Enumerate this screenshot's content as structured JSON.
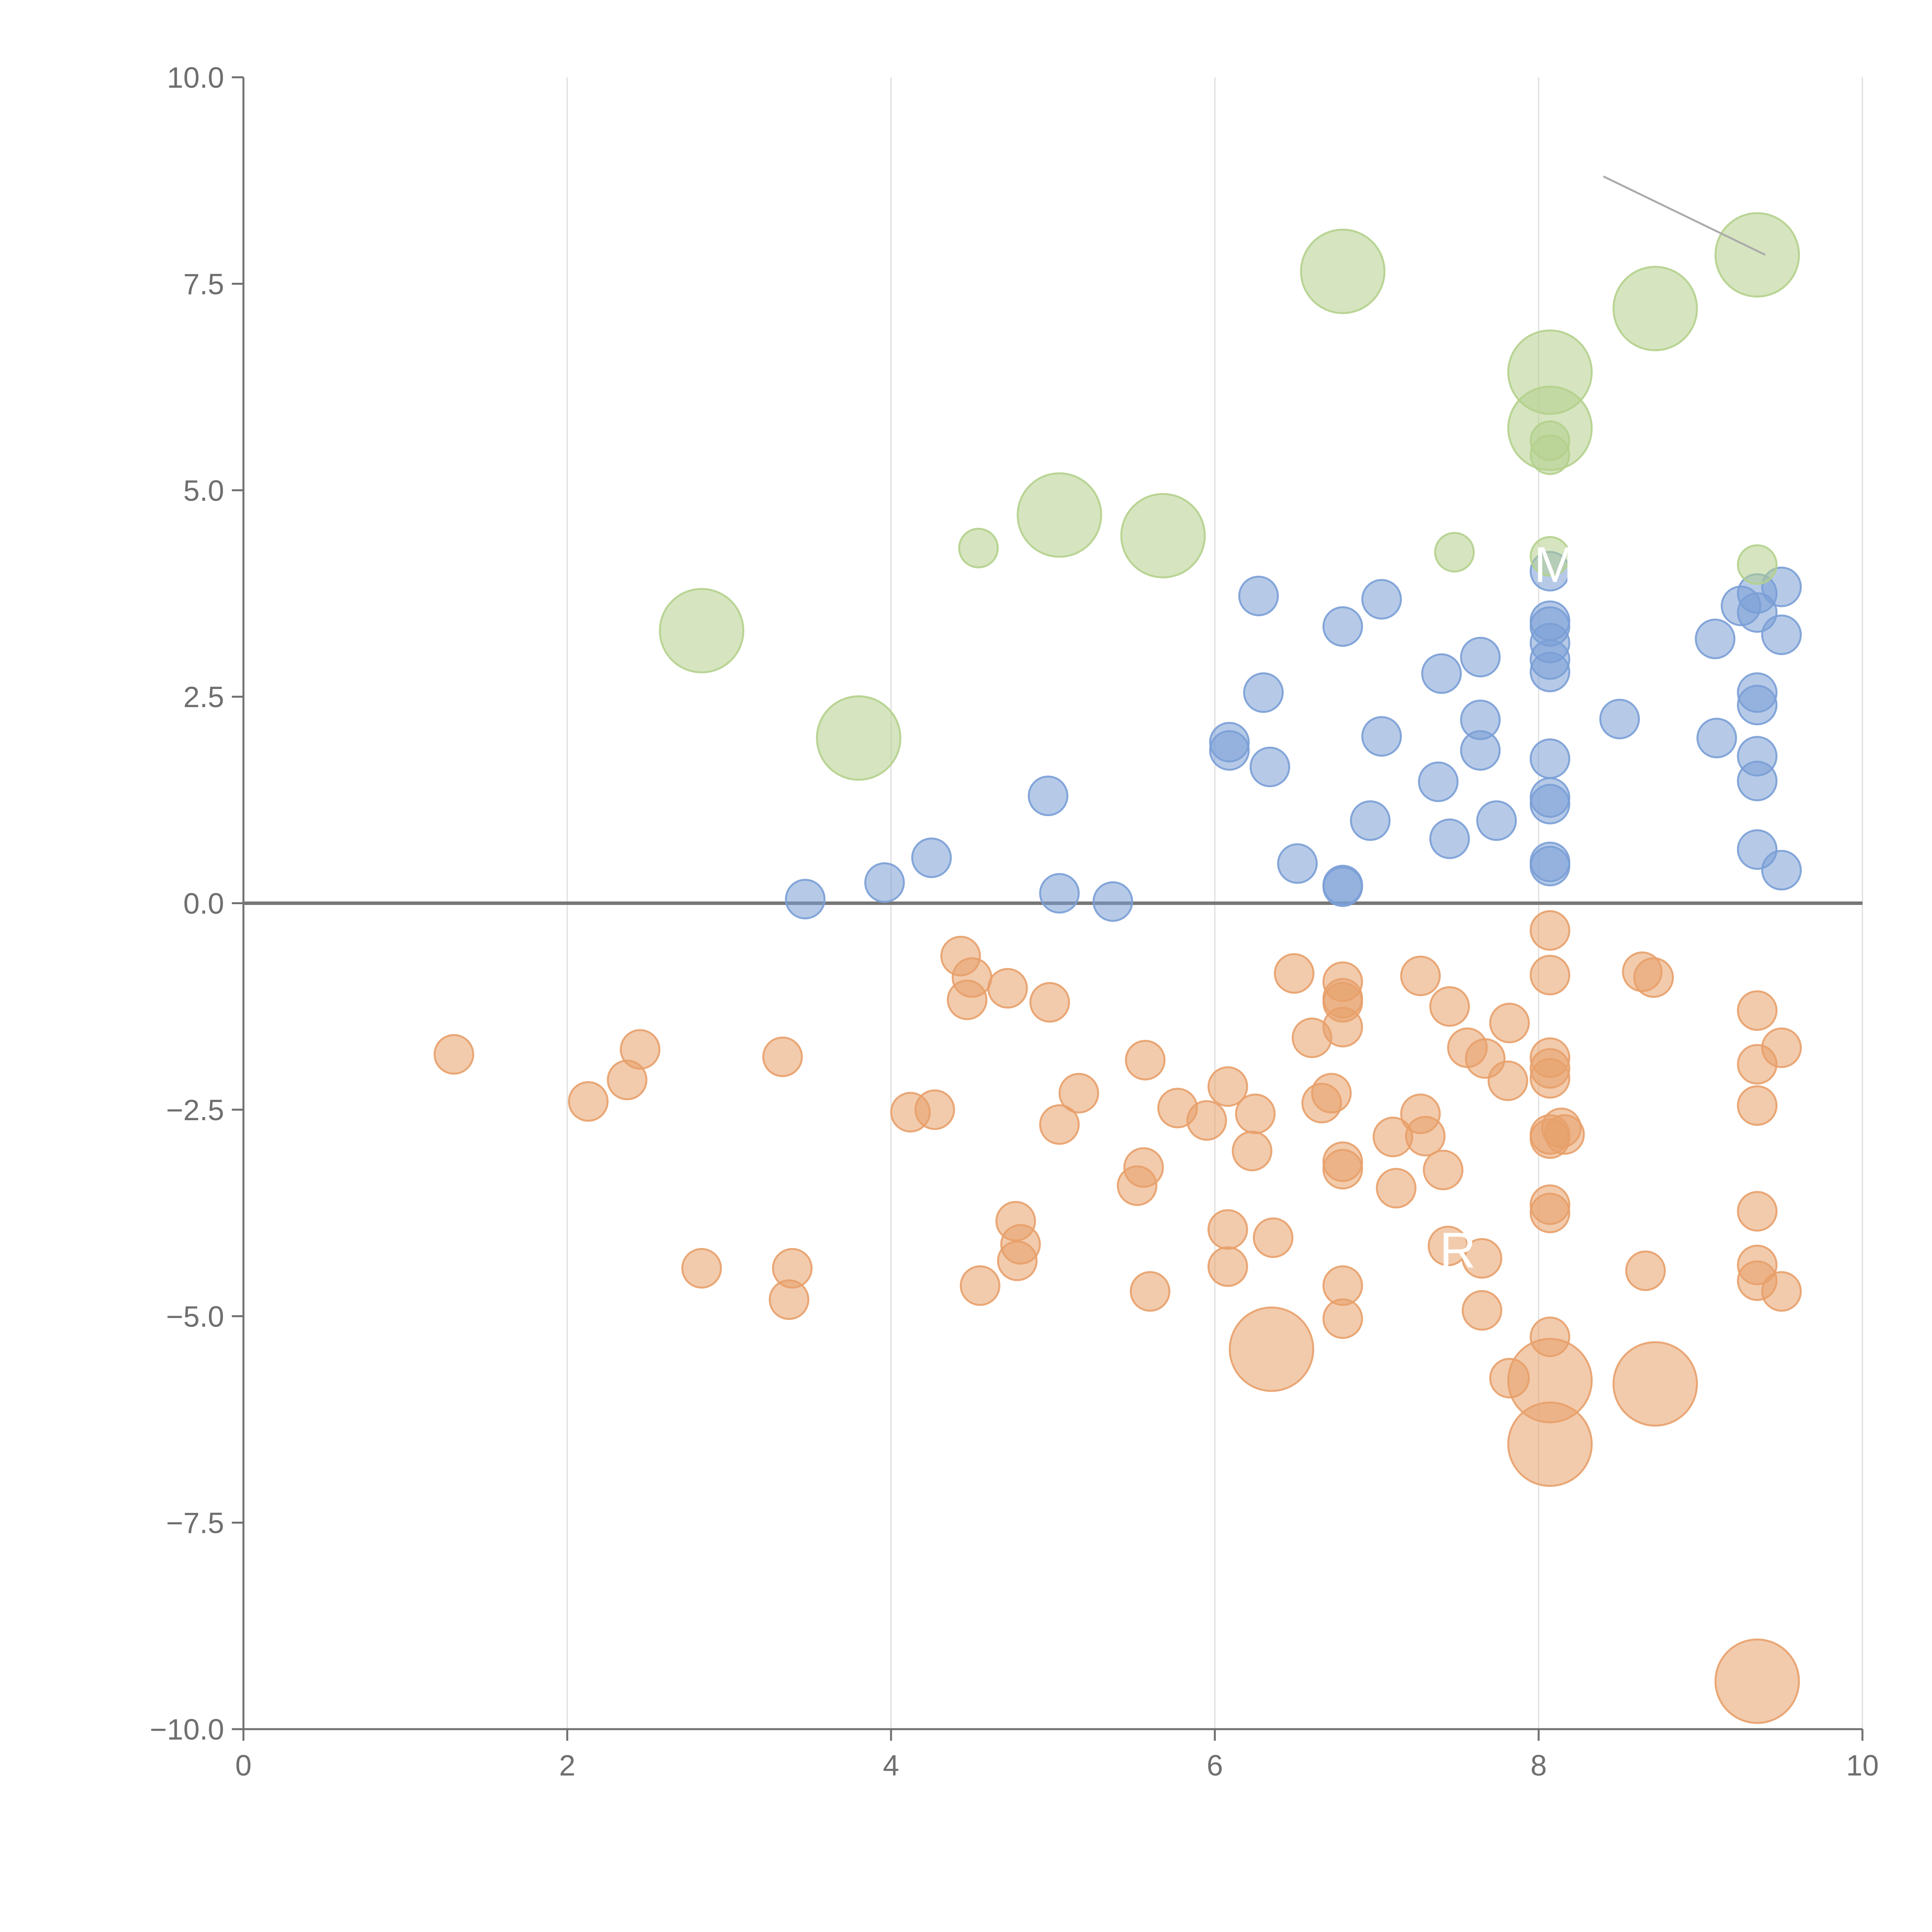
{
  "chart_data": {
    "type": "scatter",
    "title": "",
    "xlabel": "",
    "ylabel": "",
    "xlim": [
      0,
      10
    ],
    "ylim": [
      -10,
      10
    ],
    "x_ticks": [
      0,
      2,
      4,
      6,
      8,
      10
    ],
    "x_tick_labels": [
      "0",
      "2",
      "4",
      "6",
      "8",
      "10"
    ],
    "y_ticks": [
      10,
      7.5,
      5,
      2.5,
      0,
      -2.5,
      -5,
      -7.5,
      -10
    ],
    "y_tick_labels": [
      "10.0",
      "7.5",
      "5.0",
      "2.5",
      "0.0",
      "−2.5",
      "−5.0",
      "−7.5",
      "−10.0"
    ],
    "grid": "vertical lines at x ticks",
    "reference_line_y": 0,
    "legend": "none",
    "colors": {
      "blue": "#7a9fd6",
      "orange": "#e8a06a",
      "green": "#b4d08c",
      "axis": "#6f6f6f",
      "grid": "#dddddd",
      "zero_line": "#777777"
    },
    "annotations": [
      {
        "text": "M",
        "x": 8.1,
        "y": 4.1
      },
      {
        "text": "R",
        "x": 7.5,
        "y": -4.2
      }
    ],
    "connector": {
      "from": [
        8.4,
        8.8
      ],
      "to": [
        9.4,
        7.85
      ]
    },
    "series": [
      {
        "color_key": "blue",
        "marker_size": "small",
        "points": [
          [
            3.47,
            0.05
          ],
          [
            3.96,
            0.25
          ],
          [
            4.25,
            0.55
          ],
          [
            4.97,
            1.3
          ],
          [
            5.04,
            0.12
          ],
          [
            5.37,
            0.02
          ],
          [
            6.09,
            1.95
          ],
          [
            6.09,
            1.85
          ],
          [
            6.27,
            3.72
          ],
          [
            6.3,
            2.55
          ],
          [
            6.34,
            1.65
          ],
          [
            6.51,
            0.48
          ],
          [
            6.79,
            3.35
          ],
          [
            6.79,
            0.22
          ],
          [
            6.79,
            0.2
          ],
          [
            6.96,
            1.0
          ],
          [
            7.03,
            3.68
          ],
          [
            7.03,
            2.02
          ],
          [
            7.38,
            1.47
          ],
          [
            7.4,
            2.78
          ],
          [
            7.45,
            0.78
          ],
          [
            7.64,
            2.98
          ],
          [
            7.64,
            2.22
          ],
          [
            7.64,
            1.85
          ],
          [
            7.74,
            1.0
          ],
          [
            8.07,
            4.02
          ],
          [
            8.07,
            3.42
          ],
          [
            8.07,
            3.35
          ],
          [
            8.07,
            3.15
          ],
          [
            8.07,
            2.95
          ],
          [
            8.07,
            2.8
          ],
          [
            8.07,
            1.75
          ],
          [
            8.07,
            1.28
          ],
          [
            8.07,
            1.2
          ],
          [
            8.07,
            0.5
          ],
          [
            8.07,
            0.45
          ],
          [
            8.5,
            2.23
          ],
          [
            9.09,
            3.2
          ],
          [
            9.1,
            2.0
          ],
          [
            9.25,
            3.6
          ],
          [
            9.35,
            3.75
          ],
          [
            9.35,
            3.52
          ],
          [
            9.35,
            2.55
          ],
          [
            9.35,
            2.4
          ],
          [
            9.35,
            1.78
          ],
          [
            9.35,
            1.48
          ],
          [
            9.35,
            0.65
          ],
          [
            9.5,
            3.83
          ],
          [
            9.5,
            3.25
          ],
          [
            9.5,
            0.4
          ]
        ]
      },
      {
        "color_key": "orange",
        "marker_size": "small",
        "points": [
          [
            1.3,
            -1.83
          ],
          [
            2.13,
            -2.4
          ],
          [
            2.37,
            -2.14
          ],
          [
            2.45,
            -1.77
          ],
          [
            2.83,
            -4.42
          ],
          [
            3.33,
            -1.86
          ],
          [
            3.37,
            -4.8
          ],
          [
            3.39,
            -4.42
          ],
          [
            4.12,
            -2.53
          ],
          [
            4.27,
            -2.5
          ],
          [
            4.43,
            -0.64
          ],
          [
            4.47,
            -1.17
          ],
          [
            4.5,
            -0.9
          ],
          [
            4.55,
            -4.63
          ],
          [
            4.72,
            -1.03
          ],
          [
            4.77,
            -3.85
          ],
          [
            4.78,
            -4.33
          ],
          [
            4.8,
            -4.13
          ],
          [
            4.98,
            -1.2
          ],
          [
            5.04,
            -2.68
          ],
          [
            5.16,
            -2.3
          ],
          [
            5.52,
            -3.42
          ],
          [
            5.56,
            -3.2
          ],
          [
            5.57,
            -1.9
          ],
          [
            5.6,
            -4.7
          ],
          [
            5.77,
            -2.48
          ],
          [
            5.95,
            -2.63
          ],
          [
            6.08,
            -2.22
          ],
          [
            6.08,
            -3.95
          ],
          [
            6.08,
            -4.4
          ],
          [
            6.23,
            -3.0
          ],
          [
            6.25,
            -2.55
          ],
          [
            6.36,
            -4.05
          ],
          [
            6.49,
            -0.85
          ],
          [
            6.6,
            -1.63
          ],
          [
            6.66,
            -2.42
          ],
          [
            6.72,
            -2.3
          ],
          [
            6.79,
            -0.95
          ],
          [
            6.79,
            -1.15
          ],
          [
            6.79,
            -1.2
          ],
          [
            6.79,
            -1.5
          ],
          [
            6.79,
            -3.13
          ],
          [
            6.79,
            -3.22
          ],
          [
            6.79,
            -4.63
          ],
          [
            6.79,
            -5.03
          ],
          [
            7.1,
            -2.83
          ],
          [
            7.12,
            -3.45
          ],
          [
            7.27,
            -0.88
          ],
          [
            7.27,
            -2.55
          ],
          [
            7.3,
            -2.82
          ],
          [
            7.41,
            -3.23
          ],
          [
            7.44,
            -4.15
          ],
          [
            7.45,
            -1.25
          ],
          [
            7.56,
            -1.75
          ],
          [
            7.65,
            -4.3
          ],
          [
            7.67,
            -1.88
          ],
          [
            7.65,
            -4.93
          ],
          [
            7.81,
            -2.15
          ],
          [
            7.82,
            -1.45
          ],
          [
            7.82,
            -5.75
          ],
          [
            8.07,
            -0.33
          ],
          [
            8.07,
            -0.87
          ],
          [
            8.07,
            -1.87
          ],
          [
            8.07,
            -2.0
          ],
          [
            8.07,
            -2.12
          ],
          [
            8.07,
            -2.8
          ],
          [
            8.07,
            -2.85
          ],
          [
            8.07,
            -3.65
          ],
          [
            8.07,
            -3.75
          ],
          [
            8.07,
            -5.25
          ],
          [
            8.14,
            -2.72
          ],
          [
            8.16,
            -2.8
          ],
          [
            8.64,
            -0.83
          ],
          [
            8.66,
            -4.45
          ],
          [
            8.71,
            -0.9
          ],
          [
            9.35,
            -1.3
          ],
          [
            9.35,
            -1.95
          ],
          [
            9.35,
            -2.45
          ],
          [
            9.35,
            -3.73
          ],
          [
            9.35,
            -4.38
          ],
          [
            9.35,
            -4.57
          ],
          [
            9.5,
            -1.75
          ],
          [
            9.5,
            -4.7
          ]
        ]
      },
      {
        "color_key": "orange",
        "marker_size": "large",
        "points": [
          [
            6.35,
            -5.4
          ],
          [
            8.07,
            -5.78
          ],
          [
            8.07,
            -6.55
          ],
          [
            8.72,
            -5.82
          ],
          [
            9.35,
            -9.42
          ]
        ]
      },
      {
        "color_key": "green",
        "marker_size": "small",
        "points": [
          [
            4.54,
            4.3
          ],
          [
            7.48,
            4.25
          ],
          [
            8.07,
            5.6
          ],
          [
            8.07,
            5.43
          ],
          [
            8.07,
            4.2
          ],
          [
            9.35,
            4.1
          ]
        ]
      },
      {
        "color_key": "green",
        "marker_size": "large",
        "points": [
          [
            2.83,
            3.3
          ],
          [
            3.8,
            2.0
          ],
          [
            5.04,
            4.7
          ],
          [
            5.68,
            4.45
          ],
          [
            6.79,
            7.65
          ],
          [
            8.07,
            6.43
          ],
          [
            8.07,
            5.75
          ],
          [
            8.72,
            7.2
          ],
          [
            9.35,
            7.85
          ]
        ]
      }
    ]
  }
}
